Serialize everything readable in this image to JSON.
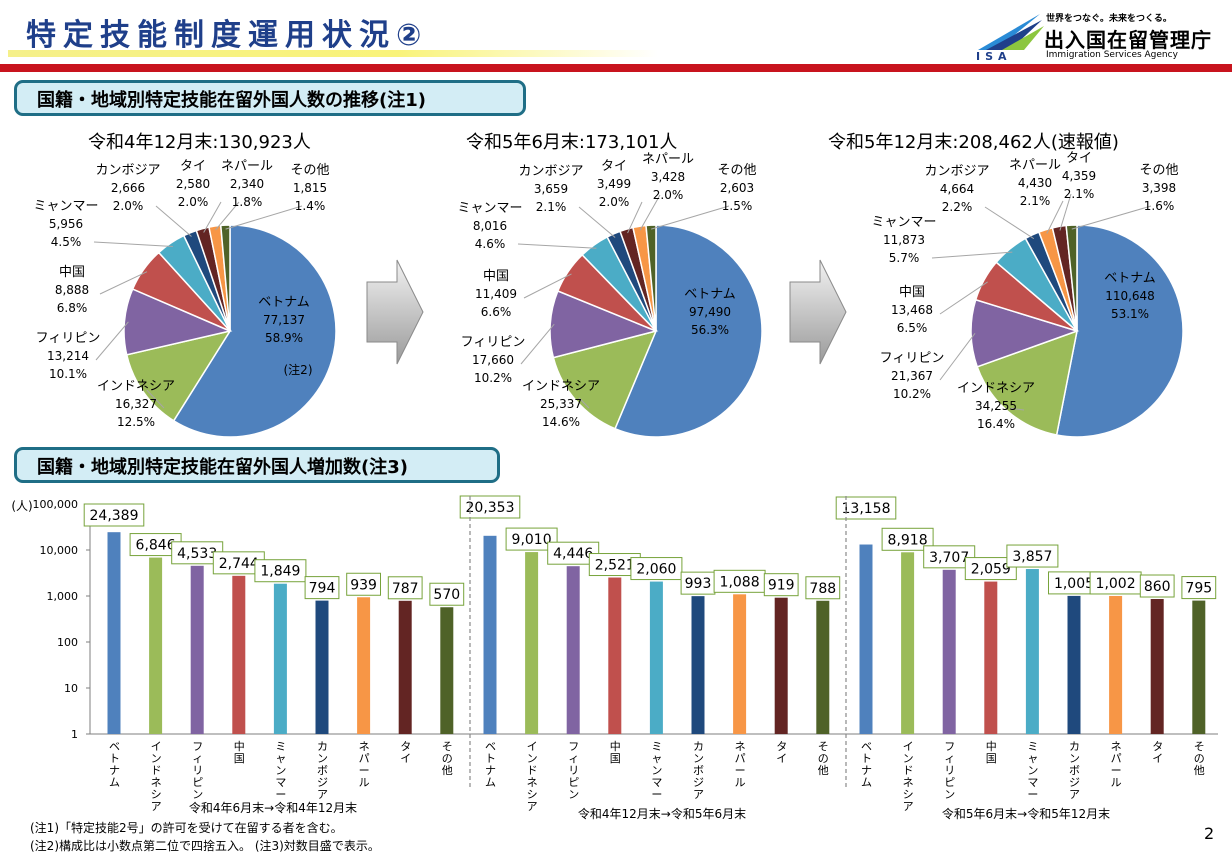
{
  "header": {
    "title": "特定技能制度運用状況②",
    "logo_tagline": "世界をつなぐ。未来をつくる。",
    "logo_name": "出入国在留管理庁",
    "logo_english": "Immigration Services Agency",
    "logo_abbr": "ISA"
  },
  "section1_title": "国籍・地域別特定技能在留外国人数の推移(注1)",
  "section2_title": "国籍・地域別特定技能在留外国人増加数(注3)",
  "colors": {
    "ベトナム": "#4f81bd",
    "インドネシア": "#9bbb59",
    "フィリピン": "#8064a2",
    "中国": "#c0504d",
    "ミャンマー": "#4bacc6",
    "カンボジア": "#1f497d",
    "ネパール": "#f79646",
    "タイ": "#632523",
    "その他": "#4f6228"
  },
  "chart_data": [
    {
      "type": "pie",
      "title": "令和4年12月末:130,923人",
      "slices": [
        {
          "label": "ベトナム",
          "value": "77,137",
          "pct": "58.9%",
          "note": "(注2)",
          "v": 77137
        },
        {
          "label": "インドネシア",
          "value": "16,327",
          "pct": "12.5%",
          "v": 16327
        },
        {
          "label": "フィリピン",
          "value": "13,214",
          "pct": "10.1%",
          "v": 13214
        },
        {
          "label": "中国",
          "value": "8,888",
          "pct": "6.8%",
          "v": 8888
        },
        {
          "label": "ミャンマー",
          "value": "5,956",
          "pct": "4.5%",
          "v": 5956
        },
        {
          "label": "カンボジア",
          "value": "2,666",
          "pct": "2.0%",
          "v": 2666
        },
        {
          "label": "タイ",
          "value": "2,580",
          "pct": "2.0%",
          "v": 2580
        },
        {
          "label": "ネパール",
          "value": "2,340",
          "pct": "1.8%",
          "v": 2340
        },
        {
          "label": "その他",
          "value": "1,815",
          "pct": "1.4%",
          "v": 1815
        }
      ]
    },
    {
      "type": "pie",
      "title": "令和5年6月末:173,101人",
      "slices": [
        {
          "label": "ベトナム",
          "value": "97,490",
          "pct": "56.3%",
          "v": 97490
        },
        {
          "label": "インドネシア",
          "value": "25,337",
          "pct": "14.6%",
          "v": 25337
        },
        {
          "label": "フィリピン",
          "value": "17,660",
          "pct": "10.2%",
          "v": 17660
        },
        {
          "label": "中国",
          "value": "11,409",
          "pct": "6.6%",
          "v": 11409
        },
        {
          "label": "ミャンマー",
          "value": "8,016",
          "pct": "4.6%",
          "v": 8016
        },
        {
          "label": "カンボジア",
          "value": "3,659",
          "pct": "2.1%",
          "v": 3659
        },
        {
          "label": "タイ",
          "value": "3,499",
          "pct": "2.0%",
          "v": 3499
        },
        {
          "label": "ネパール",
          "value": "3,428",
          "pct": "2.0%",
          "v": 3428
        },
        {
          "label": "その他",
          "value": "2,603",
          "pct": "1.5%",
          "v": 2603
        }
      ]
    },
    {
      "type": "pie",
      "title": "令和5年12月末:208,462人(速報値)",
      "slices": [
        {
          "label": "ベトナム",
          "value": "110,648",
          "pct": "53.1%",
          "v": 110648
        },
        {
          "label": "インドネシア",
          "value": "34,255",
          "pct": "16.4%",
          "v": 34255
        },
        {
          "label": "フィリピン",
          "value": "21,367",
          "pct": "10.2%",
          "v": 21367
        },
        {
          "label": "中国",
          "value": "13,468",
          "pct": "6.5%",
          "v": 13468
        },
        {
          "label": "ミャンマー",
          "value": "11,873",
          "pct": "5.7%",
          "v": 11873
        },
        {
          "label": "カンボジア",
          "value": "4,664",
          "pct": "2.2%",
          "v": 4664
        },
        {
          "label": "ネパール",
          "value": "4,430",
          "pct": "2.1%",
          "v": 4430
        },
        {
          "label": "タイ",
          "value": "4,359",
          "pct": "2.1%",
          "v": 4359
        },
        {
          "label": "その他",
          "value": "3,398",
          "pct": "1.6%",
          "v": 3398
        }
      ]
    },
    {
      "type": "bar",
      "log_scale": true,
      "y_unit": "(人)",
      "yticks": [
        "1",
        "10",
        "100",
        "1,000",
        "10,000",
        "100,000"
      ],
      "ylim": [
        1,
        100000
      ],
      "groups": [
        {
          "label": "令和4年6月末→令和4年12月末",
          "categories": [
            "ベトナム",
            "インドネシア",
            "フィリピン",
            "中国",
            "ミャンマー",
            "カンボジア",
            "ネパール",
            "タイ",
            "その他"
          ],
          "values": [
            24389,
            6846,
            4533,
            2744,
            1849,
            794,
            939,
            787,
            570
          ],
          "labels": [
            "24,389",
            "6,846",
            "4,533",
            "2,744",
            "1,849",
            "794",
            "939",
            "787",
            "570"
          ]
        },
        {
          "label": "令和4年12月末→令和5年6月末",
          "categories": [
            "ベトナム",
            "インドネシア",
            "フィリピン",
            "中国",
            "ミャンマー",
            "カンボジア",
            "ネパール",
            "タイ",
            "その他"
          ],
          "values": [
            20353,
            9010,
            4446,
            2521,
            2060,
            993,
            1088,
            919,
            788
          ],
          "labels": [
            "20,353",
            "9,010",
            "4,446",
            "2,521",
            "2,060",
            "993",
            "1,088",
            "919",
            "788"
          ]
        },
        {
          "label": "令和5年6月末→令和5年12月末",
          "categories": [
            "ベトナム",
            "インドネシア",
            "フィリピン",
            "中国",
            "ミャンマー",
            "カンボジア",
            "ネパール",
            "タイ",
            "その他"
          ],
          "values": [
            13158,
            8918,
            3707,
            2059,
            3857,
            1005,
            1002,
            860,
            795
          ],
          "labels": [
            "13,158",
            "8,918",
            "3,707",
            "2,059",
            "3,857",
            "1,005",
            "1,002",
            "860",
            "795"
          ]
        }
      ]
    }
  ],
  "footnotes": [
    "(注1)「特定技能2号」の許可を受けて在留する者を含む。",
    "(注2)構成比は小数点第二位で四捨五入。 (注3)対数目盛で表示。"
  ],
  "page_number": "2"
}
